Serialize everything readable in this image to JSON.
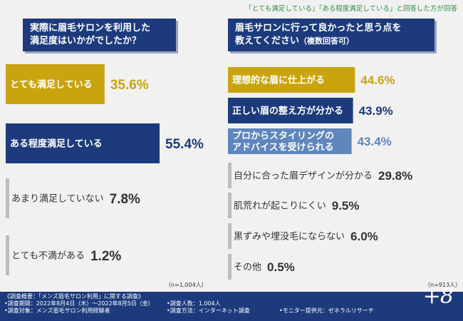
{
  "header_note": "「とても満足している」「ある程度満足している」と回答した方が回答",
  "left_question": "実際に眉毛サロンを利用した満足度はいかがでしたか？",
  "left_question_lines": [
    "実際に眉毛サロンを利用した",
    "満足度はいかがでしたか？"
  ],
  "right_question_line1": "眉毛サロンに行って良かったと思う点を",
  "right_question_line2": "教えてください",
  "right_question_sub": "（複数回答可）",
  "left_n": "（n=1,004人）",
  "right_n": "（n=913人）",
  "footer": {
    "summary": "《調査概要：「メンズ眉毛サロン利用」に関する調査》",
    "period": "•調査期間：2022年8月4日（木）～2022年8月5日（金）",
    "target": "•調査対象：メンズ眉毛サロン利用経験者",
    "respondents": "•調査人数：1,004人",
    "method": "•調査方法：インターネット調査",
    "provider": "•モニター提供元：ゼネラルリサーチ",
    "brand": "+8"
  },
  "colors": {
    "gold": "#c9a40f",
    "navy": "#1d3b7c",
    "steel": "#5f86bd",
    "gray": "#bdbdbd",
    "text_dark": "#333333",
    "text_navy": "#1d3b7c"
  },
  "chart_data": [
    {
      "type": "bar",
      "orientation": "horizontal",
      "title": "実際に眉毛サロンを利用した満足度はいかがでしたか？",
      "categories": [
        "とても満足している",
        "ある程度満足している",
        "あまり満足していない",
        "とても不満がある"
      ],
      "values": [
        35.6,
        55.4,
        7.8,
        1.2
      ],
      "value_labels": [
        "35.6%",
        "55.4%",
        "7.8%",
        "1.2%"
      ],
      "unit": "%",
      "n": "n=1,004人",
      "colors": [
        "#c9a40f",
        "#1d3b7c",
        "#bdbdbd",
        "#bdbdbd"
      ]
    },
    {
      "type": "bar",
      "orientation": "horizontal",
      "title": "眉毛サロンに行って良かったと思う点を教えてください（複数回答可）",
      "categories": [
        "理想的な眉に仕上がる",
        "正しい眉の整え方が分かる",
        "プロからスタイリングのアドバイスを受けられる",
        "自分に合った眉デザインが分かる",
        "肌荒れが起こりにくい",
        "黒ずみや埋没毛にならない",
        "その他"
      ],
      "category_lines": [
        [
          "理想的な眉に仕上がる"
        ],
        [
          "正しい眉の整え方が分かる"
        ],
        [
          "プロからスタイリングの",
          "アドバイスを受けられる"
        ],
        [
          "自分に合った眉デザインが分かる"
        ],
        [
          "肌荒れが起こりにくい"
        ],
        [
          "黒ずみや埋没毛にならない"
        ],
        [
          "その他"
        ]
      ],
      "values": [
        44.6,
        43.9,
        43.4,
        29.8,
        9.5,
        6.0,
        0.5
      ],
      "value_labels": [
        "44.6%",
        "43.9%",
        "43.4%",
        "29.8%",
        "9.5%",
        "6.0%",
        "0.5%"
      ],
      "unit": "%",
      "n": "n=913人",
      "colors": [
        "#c9a40f",
        "#1d3b7c",
        "#5f86bd",
        "#bdbdbd",
        "#bdbdbd",
        "#bdbdbd",
        "#bdbdbd"
      ]
    }
  ]
}
